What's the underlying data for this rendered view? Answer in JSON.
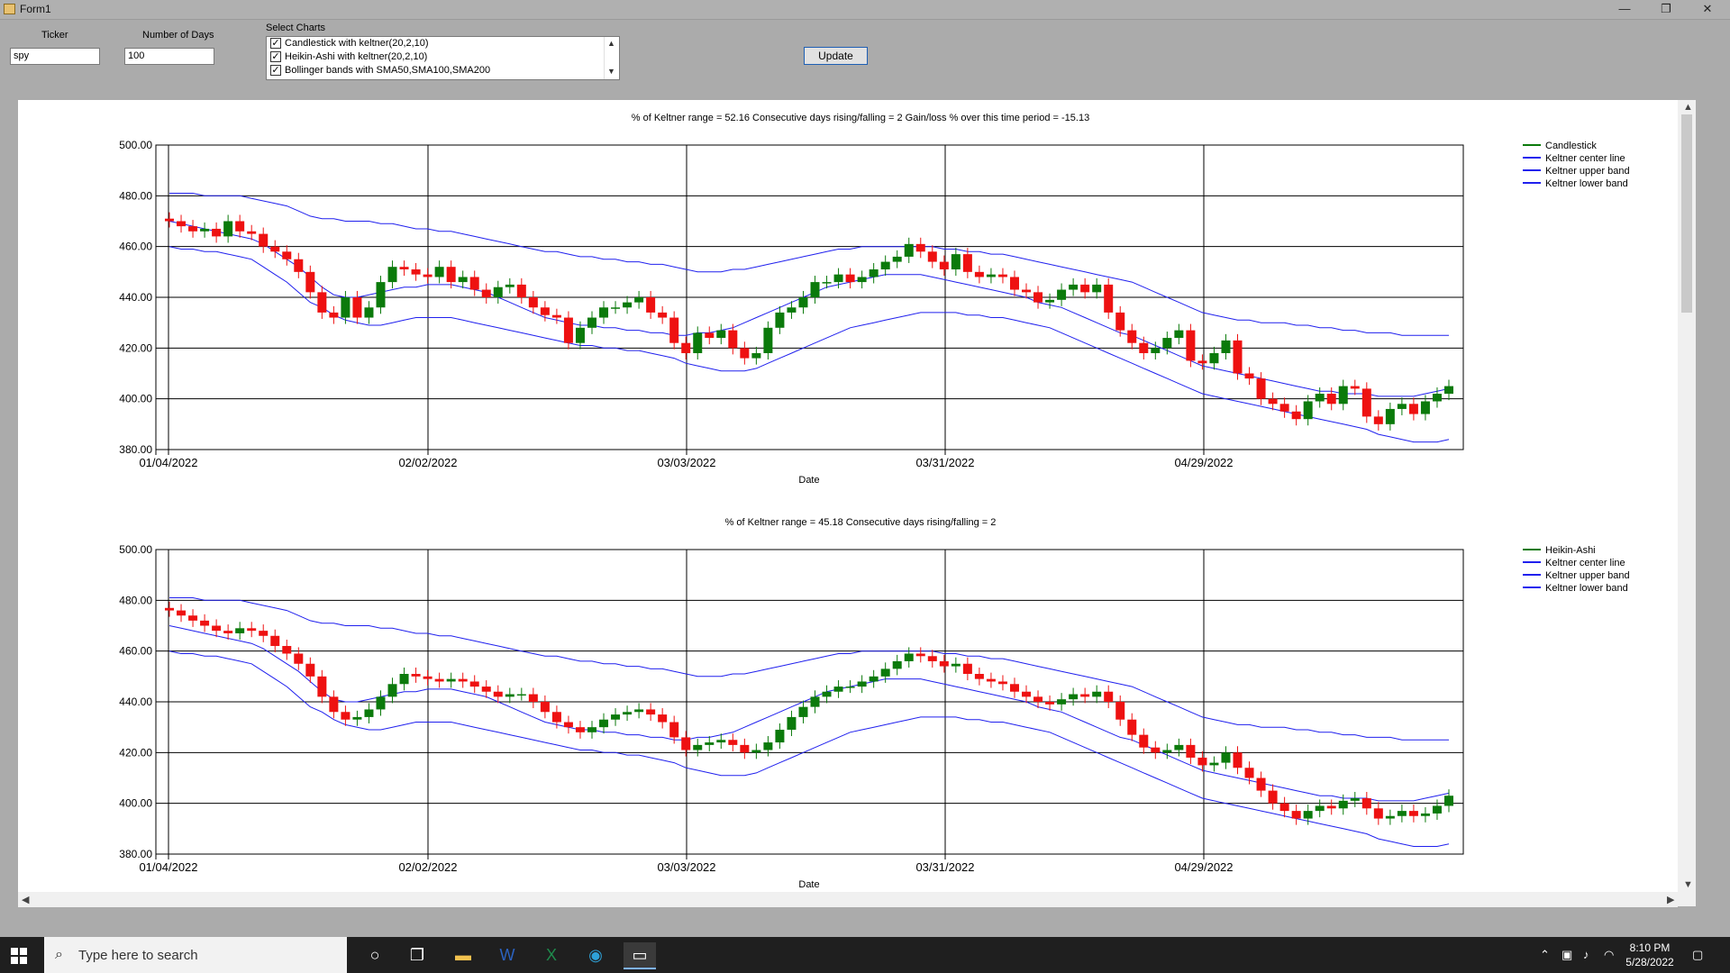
{
  "window": {
    "title": "Form1",
    "minimize": "—",
    "restore": "❐",
    "close": "✕"
  },
  "form": {
    "ticker_label": "Ticker",
    "ticker_value": "spy",
    "days_label": "Number of Days",
    "days_value": "100",
    "select_label": "Select Charts",
    "chart_options": [
      {
        "label": "Candlestick with keltner(20,2,10)",
        "checked": true
      },
      {
        "label": "Heikin-Ashi with keltner(20,2,10)",
        "checked": true
      },
      {
        "label": "Bollinger bands with SMA50,SMA100,SMA200",
        "checked": true
      }
    ],
    "update_label": "Update"
  },
  "charts": [
    {
      "title": "% of Keltner range = 52.16   Consecutive days rising/falling = 2   Gain/loss % over this time period = -15.13",
      "xlabel": "Date",
      "legend": [
        "Candlestick",
        "Keltner center line",
        "Keltner upper band",
        "Keltner lower band"
      ]
    },
    {
      "title": "% of Keltner range = 45.18   Consecutive days rising/falling = 2",
      "xlabel": "Date",
      "legend": [
        "Heikin-Ashi",
        "Keltner center line",
        "Keltner upper band",
        "Keltner lower band"
      ]
    }
  ],
  "chart_data": [
    {
      "type": "candlestick",
      "title": "% of Keltner range = 52.16   Consecutive days rising/falling = 2   Gain/loss % over this time period = -15.13",
      "xlabel": "Date",
      "ylabel": "",
      "ylim": [
        380,
        500
      ],
      "y_ticks": [
        "500.00",
        "480.00",
        "460.00",
        "440.00",
        "420.00",
        "400.00",
        "380.00"
      ],
      "x_ticks": [
        "01/04/2022",
        "02/02/2022",
        "03/03/2022",
        "03/31/2022",
        "04/29/2022"
      ],
      "grid": true,
      "legend_position": "right",
      "colors": {
        "up": "#0b7a0b",
        "down": "#ee1111",
        "bands": "#2020ee",
        "legend_candle": "#0b7a0b"
      },
      "close": [
        470,
        468,
        466,
        467,
        464,
        470,
        466,
        465,
        460,
        458,
        455,
        450,
        442,
        434,
        432,
        440,
        432,
        436,
        446,
        452,
        451,
        449,
        448,
        452,
        446,
        448,
        443,
        440,
        444,
        445,
        440,
        436,
        433,
        432,
        422,
        428,
        432,
        436,
        436,
        438,
        440,
        434,
        432,
        422,
        418,
        426,
        424,
        427,
        420,
        416,
        418,
        428,
        434,
        436,
        440,
        446,
        446,
        449,
        446,
        448,
        451,
        454,
        456,
        461,
        458,
        454,
        451,
        457,
        450,
        448,
        449,
        448,
        443,
        442,
        438,
        439,
        443,
        445,
        442,
        445,
        434,
        427,
        422,
        418,
        420,
        424,
        427,
        415,
        414,
        418,
        423,
        410,
        408,
        400,
        398,
        395,
        392,
        399,
        402,
        398,
        405,
        404,
        393,
        390,
        396,
        398,
        394,
        399,
        402,
        405
      ],
      "series": [
        {
          "name": "Keltner center line",
          "values": [
            470,
            469,
            468,
            467,
            466,
            465,
            464,
            463,
            461,
            458,
            455,
            452,
            448,
            444,
            441,
            440,
            440,
            441,
            442,
            443,
            444,
            444,
            445,
            445,
            445,
            444,
            443,
            442,
            440,
            438,
            436,
            434,
            432,
            431,
            430,
            429,
            429,
            428,
            428,
            427,
            427,
            426,
            426,
            425,
            425,
            426,
            426,
            427,
            428,
            430,
            432,
            434,
            436,
            438,
            440,
            442,
            444,
            445,
            446,
            447,
            448,
            449,
            449,
            449,
            449,
            448,
            447,
            446,
            445,
            444,
            443,
            442,
            441,
            440,
            438,
            437,
            436,
            434,
            432,
            430,
            428,
            426,
            425,
            423,
            421,
            419,
            417,
            415,
            413,
            412,
            411,
            410,
            409,
            408,
            407,
            406,
            405,
            404,
            403,
            403,
            402,
            402,
            402,
            401,
            401,
            401,
            401,
            402,
            403,
            404
          ]
        },
        {
          "name": "Keltner upper band",
          "values": [
            481,
            481,
            481,
            480,
            480,
            480,
            480,
            479,
            478,
            477,
            476,
            474,
            472,
            471,
            471,
            470,
            470,
            470,
            469,
            469,
            468,
            467,
            467,
            466,
            466,
            465,
            464,
            463,
            462,
            461,
            460,
            459,
            458,
            458,
            457,
            456,
            456,
            455,
            455,
            454,
            454,
            453,
            453,
            452,
            451,
            450,
            450,
            450,
            451,
            451,
            452,
            453,
            454,
            455,
            456,
            457,
            458,
            459,
            459,
            460,
            460,
            460,
            460,
            460,
            460,
            460,
            459,
            459,
            458,
            458,
            457,
            457,
            456,
            455,
            454,
            453,
            452,
            451,
            450,
            449,
            448,
            447,
            446,
            444,
            442,
            440,
            438,
            436,
            434,
            433,
            432,
            431,
            431,
            430,
            430,
            430,
            429,
            429,
            428,
            428,
            427,
            427,
            426,
            426,
            426,
            425,
            425,
            425,
            425,
            425
          ]
        },
        {
          "name": "Keltner lower band",
          "values": [
            460,
            459,
            459,
            458,
            458,
            457,
            456,
            455,
            452,
            449,
            446,
            442,
            438,
            436,
            433,
            431,
            430,
            429,
            429,
            430,
            431,
            432,
            432,
            432,
            432,
            431,
            430,
            429,
            428,
            427,
            426,
            425,
            424,
            423,
            422,
            421,
            421,
            420,
            420,
            419,
            419,
            418,
            417,
            416,
            414,
            413,
            412,
            411,
            411,
            411,
            412,
            414,
            416,
            418,
            420,
            422,
            424,
            426,
            428,
            429,
            430,
            431,
            432,
            433,
            434,
            434,
            434,
            434,
            433,
            433,
            432,
            432,
            431,
            430,
            429,
            428,
            426,
            424,
            422,
            420,
            418,
            416,
            414,
            412,
            410,
            408,
            406,
            404,
            402,
            401,
            400,
            399,
            398,
            397,
            396,
            395,
            394,
            393,
            392,
            391,
            390,
            389,
            388,
            386,
            385,
            384,
            383,
            383,
            383,
            384
          ]
        }
      ]
    },
    {
      "type": "candlestick",
      "title": "% of Keltner range = 45.18   Consecutive days rising/falling = 2",
      "xlabel": "Date",
      "ylabel": "",
      "ylim": [
        380,
        500
      ],
      "y_ticks": [
        "500.00",
        "480.00",
        "460.00",
        "440.00",
        "420.00",
        "400.00",
        "380.00"
      ],
      "x_ticks": [
        "01/04/2022",
        "02/02/2022",
        "03/03/2022",
        "03/31/2022",
        "04/29/2022"
      ],
      "grid": true,
      "legend_position": "right",
      "colors": {
        "up": "#0b7a0b",
        "down": "#ee1111",
        "bands": "#2020ee",
        "legend_candle": "#0b7a0b"
      },
      "close": [
        476,
        474,
        472,
        470,
        468,
        467,
        469,
        468,
        466,
        462,
        459,
        455,
        450,
        442,
        436,
        433,
        434,
        437,
        442,
        447,
        451,
        450,
        449,
        448,
        449,
        448,
        446,
        444,
        442,
        443,
        443,
        440,
        436,
        432,
        430,
        428,
        430,
        433,
        435,
        436,
        437,
        435,
        432,
        426,
        421,
        423,
        424,
        425,
        423,
        420,
        421,
        424,
        429,
        434,
        438,
        442,
        444,
        446,
        446,
        448,
        450,
        453,
        456,
        459,
        458,
        456,
        454,
        455,
        451,
        449,
        448,
        447,
        444,
        442,
        440,
        439,
        441,
        443,
        442,
        444,
        440,
        433,
        427,
        422,
        420,
        421,
        423,
        418,
        415,
        416,
        420,
        414,
        410,
        405,
        400,
        397,
        394,
        397,
        399,
        398,
        401,
        402,
        398,
        394,
        395,
        397,
        395,
        396,
        399,
        403
      ],
      "series": [
        {
          "name": "Keltner center line",
          "values": [
            470,
            469,
            468,
            467,
            466,
            465,
            464,
            463,
            461,
            458,
            455,
            452,
            448,
            444,
            441,
            440,
            440,
            441,
            442,
            443,
            444,
            444,
            445,
            445,
            445,
            444,
            443,
            442,
            440,
            438,
            436,
            434,
            432,
            431,
            430,
            429,
            429,
            428,
            428,
            427,
            427,
            426,
            426,
            425,
            425,
            426,
            426,
            427,
            428,
            430,
            432,
            434,
            436,
            438,
            440,
            442,
            444,
            445,
            446,
            447,
            448,
            449,
            449,
            449,
            449,
            448,
            447,
            446,
            445,
            444,
            443,
            442,
            441,
            440,
            438,
            437,
            436,
            434,
            432,
            430,
            428,
            426,
            425,
            423,
            421,
            419,
            417,
            415,
            413,
            412,
            411,
            410,
            409,
            408,
            407,
            406,
            405,
            404,
            403,
            403,
            402,
            402,
            402,
            401,
            401,
            401,
            401,
            402,
            403,
            404
          ]
        },
        {
          "name": "Keltner upper band",
          "values": [
            481,
            481,
            481,
            480,
            480,
            480,
            480,
            479,
            478,
            477,
            476,
            474,
            472,
            471,
            471,
            470,
            470,
            470,
            469,
            469,
            468,
            467,
            467,
            466,
            466,
            465,
            464,
            463,
            462,
            461,
            460,
            459,
            458,
            458,
            457,
            456,
            456,
            455,
            455,
            454,
            454,
            453,
            453,
            452,
            451,
            450,
            450,
            450,
            451,
            451,
            452,
            453,
            454,
            455,
            456,
            457,
            458,
            459,
            459,
            460,
            460,
            460,
            460,
            460,
            460,
            460,
            459,
            459,
            458,
            458,
            457,
            457,
            456,
            455,
            454,
            453,
            452,
            451,
            450,
            449,
            448,
            447,
            446,
            444,
            442,
            440,
            438,
            436,
            434,
            433,
            432,
            431,
            431,
            430,
            430,
            430,
            429,
            429,
            428,
            428,
            427,
            427,
            426,
            426,
            426,
            425,
            425,
            425,
            425,
            425
          ]
        },
        {
          "name": "Keltner lower band",
          "values": [
            460,
            459,
            459,
            458,
            458,
            457,
            456,
            455,
            452,
            449,
            446,
            442,
            438,
            436,
            433,
            431,
            430,
            429,
            429,
            430,
            431,
            432,
            432,
            432,
            432,
            431,
            430,
            429,
            428,
            427,
            426,
            425,
            424,
            423,
            422,
            421,
            421,
            420,
            420,
            419,
            419,
            418,
            417,
            416,
            414,
            413,
            412,
            411,
            411,
            411,
            412,
            414,
            416,
            418,
            420,
            422,
            424,
            426,
            428,
            429,
            430,
            431,
            432,
            433,
            434,
            434,
            434,
            434,
            433,
            433,
            432,
            432,
            431,
            430,
            429,
            428,
            426,
            424,
            422,
            420,
            418,
            416,
            414,
            412,
            410,
            408,
            406,
            404,
            402,
            401,
            400,
            399,
            398,
            397,
            396,
            395,
            394,
            393,
            392,
            391,
            390,
            389,
            388,
            386,
            385,
            384,
            383,
            383,
            383,
            384
          ]
        }
      ]
    }
  ],
  "taskbar": {
    "search_placeholder": "Type here to search",
    "time": "8:10 PM",
    "date": "5/28/2022",
    "apps": [
      "cortana-icon",
      "task-view-icon",
      "file-explorer-icon",
      "word-icon",
      "excel-icon",
      "edge-icon",
      "form-app-icon"
    ]
  }
}
